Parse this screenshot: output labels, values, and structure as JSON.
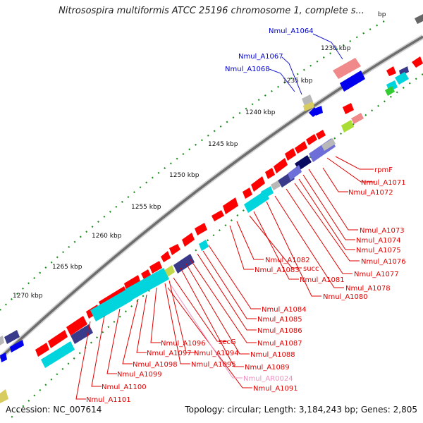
{
  "title": "Nitrosospira multiformis ATCC 25196 chromosome 1, complete s...",
  "footer": {
    "accession": "Accession: NC_007614",
    "summary": "Topology: circular; Length: 3,184,243 bp; Genes: 2,805"
  },
  "scale": {
    "partial_label": "bp",
    "kbp_labels": [
      "1230 kbp",
      "1235 kbp",
      "1240 kbp",
      "1245 kbp",
      "1250 kbp",
      "1255 kbp",
      "1260 kbp",
      "1265 kbp",
      "1270 kbp"
    ]
  },
  "colors": {
    "backbone": "#7a7a7a",
    "forward_cds": "#ff0000",
    "cog_blue": "#0000ee",
    "cog_navy": "#3a3a8a",
    "cog_cyan": "#00d4dc",
    "cog_pink": "#f08a8a",
    "cog_gray": "#b8b8b8",
    "tick": "#1a8c1a",
    "label_top": "#0000cc",
    "label_bottom": "#e00000",
    "label_rna": "#f090c0"
  },
  "labels_top": [
    "Nmul_A1064",
    "Nmul_A1067",
    "Nmul_A1068"
  ],
  "labels_bottom": [
    "rpmF",
    "Nmul_A1071",
    "Nmul_A1072",
    "Nmul_A1073",
    "Nmul_A1074",
    "Nmul_A1075",
    "Nmul_A1076",
    "Nmul_A1077",
    "Nmul_A1078",
    "Nmul_A1080",
    "Nmul_A1081",
    "succ",
    "Nmul_A1082",
    "Nmul_A1083",
    "Nmul_A1084",
    "Nmul_A1085",
    "Nmul_A1086",
    "Nmul_A1087",
    "Nmul_A1088",
    "Nmul_A1089",
    "secG",
    "Nmul_A1094",
    "Nmul_A1095",
    "Nmul_A1096",
    "Nmul_A1097",
    "Nmul_A1098",
    "Nmul_A1099",
    "Nmul_A1100",
    "Nmul_A1101",
    "Nmul_AR0024",
    "Nmul_A1091"
  ]
}
